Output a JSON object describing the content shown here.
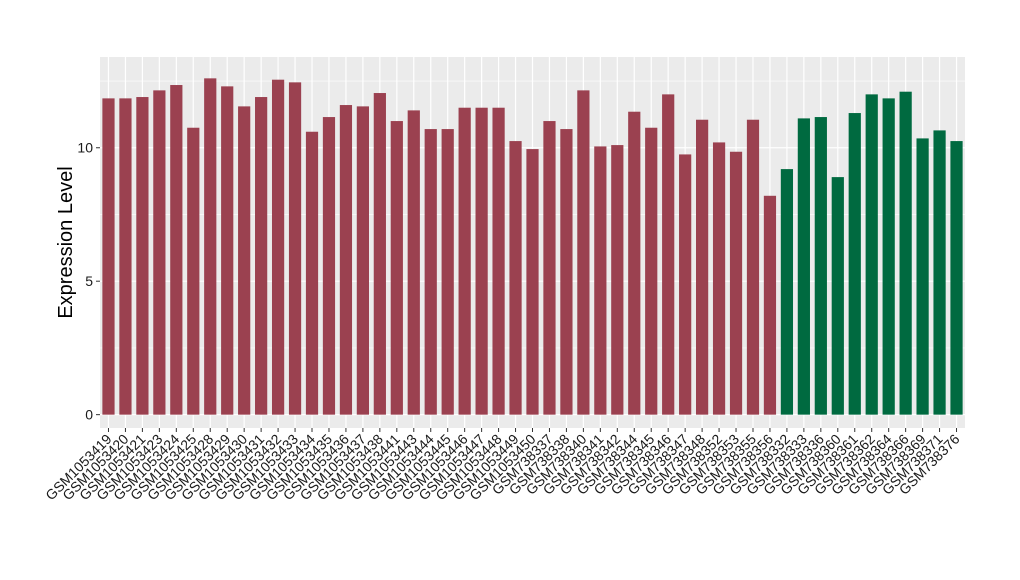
{
  "chart_data": {
    "type": "bar",
    "title": "",
    "xlabel": "",
    "ylabel": "Expression Level",
    "ylim": [
      -0.5,
      13.4
    ],
    "yticks": [
      0,
      5,
      10
    ],
    "grid": true,
    "legend": "none",
    "colors": {
      "group1": "#9b4150",
      "group2": "#006a40",
      "panel": "#ebebeb",
      "grid": "#ffffff"
    },
    "categories": [
      "GSM1053419",
      "GSM1053420",
      "GSM1053421",
      "GSM1053423",
      "GSM1053424",
      "GSM1053425",
      "GSM1053428",
      "GSM1053429",
      "GSM1053430",
      "GSM1053431",
      "GSM1053432",
      "GSM1053433",
      "GSM1053434",
      "GSM1053435",
      "GSM1053436",
      "GSM1053437",
      "GSM1053438",
      "GSM1053441",
      "GSM1053443",
      "GSM1053444",
      "GSM1053445",
      "GSM1053446",
      "GSM1053447",
      "GSM1053448",
      "GSM1053449",
      "GSM1053450",
      "GSM738337",
      "GSM738338",
      "GSM738340",
      "GSM738341",
      "GSM738342",
      "GSM738344",
      "GSM738345",
      "GSM738346",
      "GSM738347",
      "GSM738348",
      "GSM738352",
      "GSM738353",
      "GSM738355",
      "GSM738356",
      "GSM738332",
      "GSM738333",
      "GSM738336",
      "GSM738360",
      "GSM738361",
      "GSM738362",
      "GSM738364",
      "GSM738366",
      "GSM738369",
      "GSM738371",
      "GSM738376"
    ],
    "values": [
      11.85,
      11.85,
      11.9,
      12.15,
      12.35,
      10.75,
      12.6,
      12.3,
      11.55,
      11.9,
      12.55,
      12.45,
      10.6,
      11.15,
      11.6,
      11.55,
      12.05,
      11.0,
      11.4,
      10.7,
      10.7,
      11.5,
      11.5,
      11.5,
      10.25,
      9.95,
      11.0,
      10.7,
      12.15,
      10.05,
      10.1,
      11.35,
      10.75,
      12.0,
      9.75,
      11.05,
      10.2,
      9.85,
      11.05,
      8.2,
      9.2,
      11.1,
      11.15,
      8.9,
      11.3,
      12.0,
      11.85,
      12.1,
      10.35,
      10.65,
      10.25
    ],
    "groups": [
      "group1",
      "group1",
      "group1",
      "group1",
      "group1",
      "group1",
      "group1",
      "group1",
      "group1",
      "group1",
      "group1",
      "group1",
      "group1",
      "group1",
      "group1",
      "group1",
      "group1",
      "group1",
      "group1",
      "group1",
      "group1",
      "group1",
      "group1",
      "group1",
      "group1",
      "group1",
      "group1",
      "group1",
      "group1",
      "group1",
      "group1",
      "group1",
      "group1",
      "group1",
      "group1",
      "group1",
      "group1",
      "group1",
      "group1",
      "group1",
      "group2",
      "group2",
      "group2",
      "group2",
      "group2",
      "group2",
      "group2",
      "group2",
      "group2",
      "group2",
      "group2"
    ]
  }
}
